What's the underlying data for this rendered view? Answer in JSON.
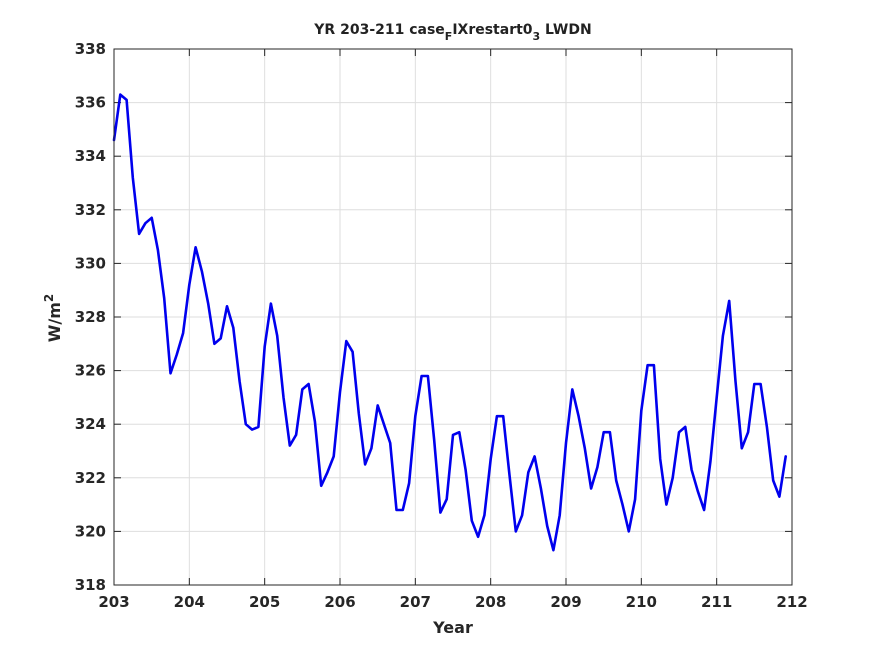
{
  "chart_data": {
    "type": "line",
    "title": "YR 203-211 case",
    "title_sub": "F",
    "title_mid": "IXrestart0",
    "title_sub2": "3",
    "title_end": " LWDN",
    "xlabel": "Year",
    "ylabel": "W/m",
    "ylabel_sup": "2",
    "xlim": [
      203,
      212
    ],
    "ylim": [
      318,
      338
    ],
    "xticks": [
      203,
      204,
      205,
      206,
      207,
      208,
      209,
      210,
      211,
      212
    ],
    "yticks": [
      318,
      320,
      322,
      324,
      326,
      328,
      330,
      332,
      334,
      336,
      338
    ],
    "grid": true,
    "line_color": "#0000ee",
    "series": [
      {
        "x": [
          203.0,
          203.083,
          203.167,
          203.25,
          203.333,
          203.417,
          203.5,
          203.583,
          203.667,
          203.75,
          203.833,
          203.917,
          204.0,
          204.083,
          204.167,
          204.25,
          204.333,
          204.417,
          204.5,
          204.583,
          204.667,
          204.75,
          204.833,
          204.917,
          205.0,
          205.083,
          205.167,
          205.25,
          205.333,
          205.417,
          205.5,
          205.583,
          205.667,
          205.75,
          205.833,
          205.917,
          206.0,
          206.083,
          206.167,
          206.25,
          206.333,
          206.417,
          206.5,
          206.583,
          206.667,
          206.75,
          206.833,
          206.917,
          207.0,
          207.083,
          207.167,
          207.25,
          207.333,
          207.417,
          207.5,
          207.583,
          207.667,
          207.75,
          207.833,
          207.917,
          208.0,
          208.083,
          208.167,
          208.25,
          208.333,
          208.417,
          208.5,
          208.583,
          208.667,
          208.75,
          208.833,
          208.917,
          209.0,
          209.083,
          209.167,
          209.25,
          209.333,
          209.417,
          209.5,
          209.583,
          209.667,
          209.75,
          209.833,
          209.917,
          210.0,
          210.083,
          210.167,
          210.25,
          210.333,
          210.417,
          210.5,
          210.583,
          210.667,
          210.75,
          210.833,
          210.917,
          211.0,
          211.083,
          211.167,
          211.25,
          211.333,
          211.417,
          211.5,
          211.583,
          211.667,
          211.75,
          211.833,
          211.917
        ],
        "y": [
          334.6,
          336.3,
          336.1,
          333.2,
          331.1,
          331.5,
          331.7,
          330.5,
          328.7,
          325.9,
          326.6,
          327.4,
          329.2,
          330.6,
          329.7,
          328.5,
          327.0,
          327.2,
          328.4,
          327.6,
          325.6,
          324.0,
          323.8,
          323.9,
          326.9,
          328.5,
          327.3,
          325.0,
          323.2,
          323.6,
          325.3,
          325.5,
          324.1,
          321.7,
          322.2,
          322.8,
          325.2,
          327.1,
          326.7,
          324.4,
          322.5,
          323.1,
          324.7,
          324.0,
          323.3,
          320.8,
          320.8,
          321.8,
          324.3,
          325.8,
          325.8,
          323.4,
          320.7,
          321.2,
          323.6,
          323.7,
          322.3,
          320.4,
          319.8,
          320.6,
          322.7,
          324.3,
          324.3,
          322.1,
          320.0,
          320.6,
          322.2,
          322.8,
          321.6,
          320.2,
          319.3,
          320.6,
          323.3,
          325.3,
          324.3,
          323.1,
          321.6,
          322.4,
          323.7,
          323.7,
          321.9,
          321.0,
          320.0,
          321.2,
          324.5,
          326.2,
          326.2,
          322.7,
          321.0,
          322.0,
          323.7,
          323.9,
          322.3,
          321.5,
          320.8,
          322.6,
          325.0,
          327.3,
          328.6,
          325.6,
          323.1,
          323.7,
          325.5,
          325.5,
          323.9,
          321.9,
          321.3,
          322.8
        ]
      }
    ]
  }
}
